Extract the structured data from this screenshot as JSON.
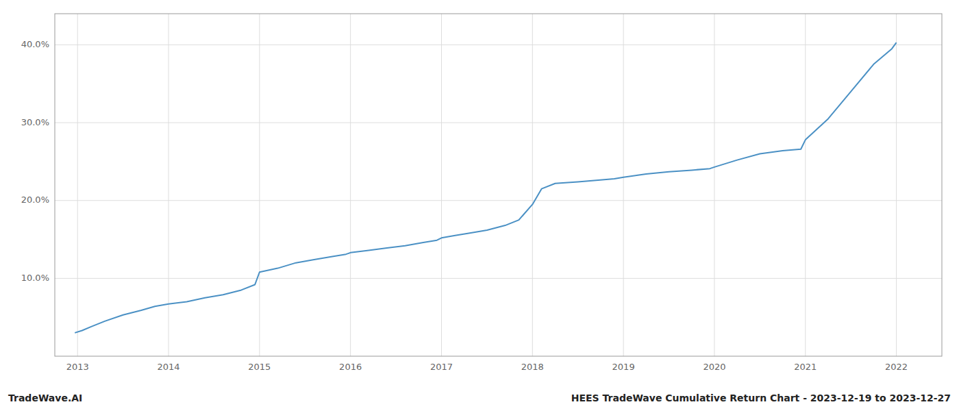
{
  "chart_data": {
    "type": "line",
    "title": "HEES TradeWave Cumulative Return Chart - 2023-12-19 to 2023-12-27",
    "annotations": [
      "TradeWave.AI"
    ],
    "color": "#4a90c4",
    "grid": true,
    "x": [
      2012.97,
      2013.05,
      2013.15,
      2013.3,
      2013.5,
      2013.7,
      2013.85,
      2014.0,
      2014.2,
      2014.4,
      2014.6,
      2014.8,
      2014.95,
      2015.0,
      2015.2,
      2015.4,
      2015.6,
      2015.8,
      2015.95,
      2016.0,
      2016.2,
      2016.4,
      2016.6,
      2016.8,
      2016.95,
      2017.0,
      2017.15,
      2017.3,
      2017.5,
      2017.7,
      2017.85,
      2018.0,
      2018.1,
      2018.25,
      2018.5,
      2018.7,
      2018.9,
      2019.0,
      2019.25,
      2019.5,
      2019.75,
      2019.95,
      2020.0,
      2020.25,
      2020.5,
      2020.75,
      2020.95,
      2021.0,
      2021.25,
      2021.5,
      2021.75,
      2021.95,
      2022.0
    ],
    "values": [
      3.0,
      3.3,
      3.8,
      4.5,
      5.3,
      5.9,
      6.4,
      6.7,
      7.0,
      7.5,
      7.9,
      8.5,
      9.2,
      10.8,
      11.3,
      12.0,
      12.4,
      12.8,
      13.1,
      13.3,
      13.6,
      13.9,
      14.2,
      14.6,
      14.9,
      15.2,
      15.5,
      15.8,
      16.2,
      16.8,
      17.5,
      19.5,
      21.5,
      22.2,
      22.4,
      22.6,
      22.8,
      23.0,
      23.4,
      23.7,
      23.9,
      24.1,
      24.3,
      25.2,
      26.0,
      26.4,
      26.6,
      27.8,
      30.5,
      34.0,
      37.5,
      39.5,
      40.3
    ],
    "xlim": [
      2012.75,
      2022.5
    ],
    "xticks": [
      2013,
      2014,
      2015,
      2016,
      2017,
      2018,
      2019,
      2020,
      2021,
      2022
    ],
    "ylim": [
      0,
      44
    ],
    "yticks": [
      {
        "value": 10.0,
        "label": "10.0%"
      },
      {
        "value": 20.0,
        "label": "20.0%"
      },
      {
        "value": 30.0,
        "label": "30.0%"
      },
      {
        "value": 40.0,
        "label": "40.0%"
      }
    ]
  }
}
